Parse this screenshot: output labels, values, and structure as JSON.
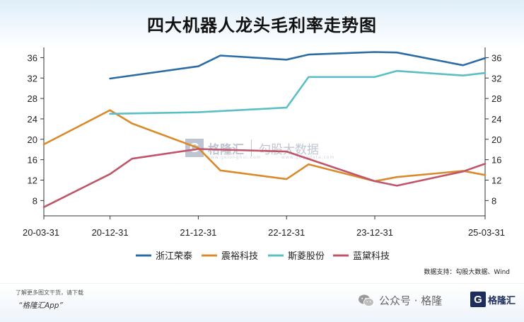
{
  "chart_data": {
    "type": "line",
    "title": "四大机器人龙头毛利率走势图",
    "xlabel": "",
    "ylabel": "",
    "x_tick_labels": [
      "20-03-31",
      "20-12-31",
      "21-12-31",
      "22-12-31",
      "23-12-31",
      "25-03-31"
    ],
    "x_tick_positions": [
      0,
      3,
      7,
      11,
      15,
      20
    ],
    "x_range": [
      0,
      20
    ],
    "ylim": [
      5,
      38
    ],
    "y_ticks": [
      8,
      12,
      16,
      20,
      24,
      28,
      32,
      36
    ],
    "y_axes": "left-and-right",
    "grid": false,
    "legend_position": "bottom",
    "series": [
      {
        "name": "浙江荣泰",
        "color": "#2c6ca4",
        "points": [
          [
            3,
            31.9
          ],
          [
            7,
            34.3
          ],
          [
            8,
            36.4
          ],
          [
            11,
            35.6
          ],
          [
            12,
            36.6
          ],
          [
            15,
            37.1
          ],
          [
            16,
            37.0
          ],
          [
            19,
            34.5
          ],
          [
            20,
            35.9
          ]
        ]
      },
      {
        "name": "震裕科技",
        "color": "#d98a2b",
        "points": [
          [
            0,
            19.0
          ],
          [
            3,
            25.7
          ],
          [
            4,
            23.1
          ],
          [
            7,
            18.3
          ],
          [
            8,
            13.9
          ],
          [
            11,
            12.2
          ],
          [
            12,
            15.1
          ],
          [
            15,
            11.8
          ],
          [
            16,
            12.6
          ],
          [
            19,
            13.8
          ],
          [
            20,
            13.0
          ]
        ]
      },
      {
        "name": "斯菱股份",
        "color": "#5bbfc6",
        "points": [
          [
            3,
            25.0
          ],
          [
            7,
            25.3
          ],
          [
            11,
            26.2
          ],
          [
            12,
            32.2
          ],
          [
            15,
            32.2
          ],
          [
            16,
            33.4
          ],
          [
            19,
            32.5
          ],
          [
            20,
            33.0
          ]
        ]
      },
      {
        "name": "蓝黛科技",
        "color": "#c0556a",
        "points": [
          [
            0,
            6.7
          ],
          [
            3,
            13.2
          ],
          [
            4,
            16.2
          ],
          [
            7,
            18.1
          ],
          [
            11,
            17.6
          ],
          [
            15,
            11.8
          ],
          [
            16,
            10.9
          ],
          [
            19,
            13.7
          ],
          [
            20,
            15.2
          ]
        ]
      }
    ]
  },
  "source_note": "数据支持：勾股大数据、Wind",
  "watermark": {
    "mark": "G",
    "brand": "格隆汇",
    "text2": "勾股大数据",
    "sub1": "www.gelonghui.com",
    "sub2": "www.gogudata.com"
  },
  "footer": {
    "promo_line": "了解更多图文干货，请下载",
    "promo_app": "“格隆汇App”",
    "wechat_label": "公众号 · 格隆",
    "brand_mark": "G",
    "brand_name": "格隆汇"
  }
}
